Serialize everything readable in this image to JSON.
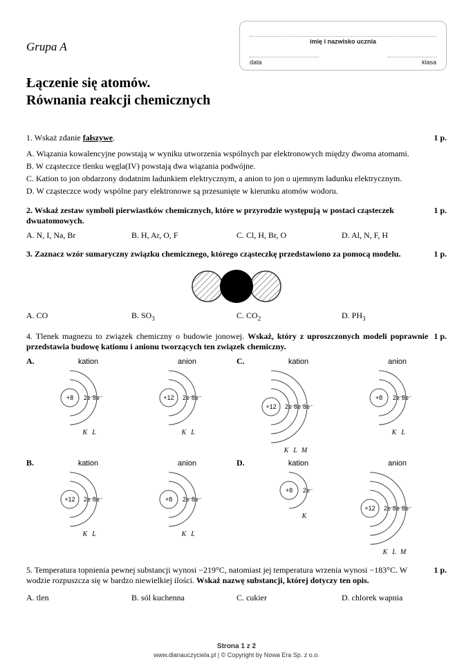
{
  "header": {
    "group": "Grupa A",
    "name_caption": "imię i nazwisko ucznia",
    "date_label": "data",
    "class_label": "klasa"
  },
  "title_line1": "Łączenie się atomów.",
  "title_line2": "Równania reakcji chemicznych",
  "q1": {
    "prompt_pre": "1. Wskaż zdanie ",
    "prompt_bold": "fałszywe",
    "prompt_post": ".",
    "pts": "1 p.",
    "a": "A. Wiązania kowalencyjne powstają w wyniku utworzenia wspólnych par elektronowych między dwoma atomami.",
    "b": "B. W cząsteczce tlenku węgla(IV) powstają dwa wiązania podwójne.",
    "c": "C. Kation to jon obdarzony dodatnim ładunkiem elektrycznym, a anion to jon o ujemnym ładunku elektrycznym.",
    "d": "D. W cząsteczce wody wspólne pary elektronowe są przesunięte w kierunku atomów wodoru."
  },
  "q2": {
    "prompt": "2. Wskaż zestaw symboli pierwiastków chemicznych, które w przyrodzie występują w postaci cząsteczek dwuatomowych.",
    "pts": "1 p.",
    "a": "A. N, I, Na, Br",
    "b": "B. H, Ar, O, F",
    "c": "C. Cl, H, Br, O",
    "d": "D. Al, N, F, H"
  },
  "q3": {
    "prompt": "3. Zaznacz wzór sumaryczny związku chemicznego, którego cząsteczkę przedstawiono za pomocą modelu.",
    "pts": "1 p.",
    "a": "A. CO",
    "b_pre": "B. SO",
    "b_sub": "3",
    "c_pre": "C. CO",
    "c_sub": "2",
    "d_pre": "D. PH",
    "d_sub": "3",
    "model": {
      "circle_radius": 22,
      "hatched_fill": "#fff",
      "hatched_stroke": "#555",
      "center_fill": "#000"
    }
  },
  "q4": {
    "prompt_pre": "4. Tlenek magnezu to związek chemiczny o budowie jonowej. ",
    "prompt_bold": "Wskaż, który z uproszczonych modeli poprawnie przedstawia budowę kationu i anionu tworzących ten związek chemiczny.",
    "pts": "1 p.",
    "kation": "kation",
    "anion": "anion",
    "labels": {
      "A": "A.",
      "B": "B.",
      "C": "C.",
      "D": "D."
    },
    "shells_K": "K",
    "shells_L": "L",
    "shells_M": "M",
    "models": {
      "A": {
        "kation": {
          "core": "+8",
          "shells": [
            "2e⁻",
            "8e⁻"
          ],
          "letters": [
            "K",
            "L"
          ]
        },
        "anion": {
          "core": "+12",
          "shells": [
            "2e⁻",
            "8e⁻"
          ],
          "letters": [
            "K",
            "L"
          ]
        }
      },
      "B": {
        "kation": {
          "core": "+12",
          "shells": [
            "2e⁻",
            "8e⁻"
          ],
          "letters": [
            "K",
            "L"
          ]
        },
        "anion": {
          "core": "+8",
          "shells": [
            "2e⁻",
            "8e⁻"
          ],
          "letters": [
            "K",
            "L"
          ]
        }
      },
      "C": {
        "kation": {
          "core": "+12",
          "shells": [
            "2e⁻",
            "8e⁻",
            "8e⁻"
          ],
          "letters": [
            "K",
            "L",
            "M"
          ]
        },
        "anion": {
          "core": "+8",
          "shells": [
            "2e⁻",
            "8e⁻"
          ],
          "letters": [
            "K",
            "L"
          ]
        }
      },
      "D": {
        "kation": {
          "core": "+8",
          "shells": [
            "2e⁻"
          ],
          "letters": [
            "K"
          ]
        },
        "anion": {
          "core": "+12",
          "shells": [
            "2e⁻",
            "8e⁻",
            "8e⁻"
          ],
          "letters": [
            "K",
            "L",
            "M"
          ]
        }
      }
    }
  },
  "q5": {
    "prompt_pre": "5. Temperatura topnienia pewnej substancji wynosi −219°C, natomiast jej temperatura wrzenia wynosi −183°C. W wodzie rozpuszcza się w bardzo niewielkiej ilości. ",
    "prompt_bold": "Wskaż nazwę substancji, której dotyczy ten opis.",
    "pts": "1 p.",
    "a": "A. tlen",
    "b": "B. sól kuchenna",
    "c": "C. cukier",
    "d": "D. chlorek wapnia"
  },
  "footer": {
    "page": "Strona 1 z 2",
    "copy": "www.dlanauczyciela.pl | © Copyright by Nowa Era Sp. z o.o."
  }
}
